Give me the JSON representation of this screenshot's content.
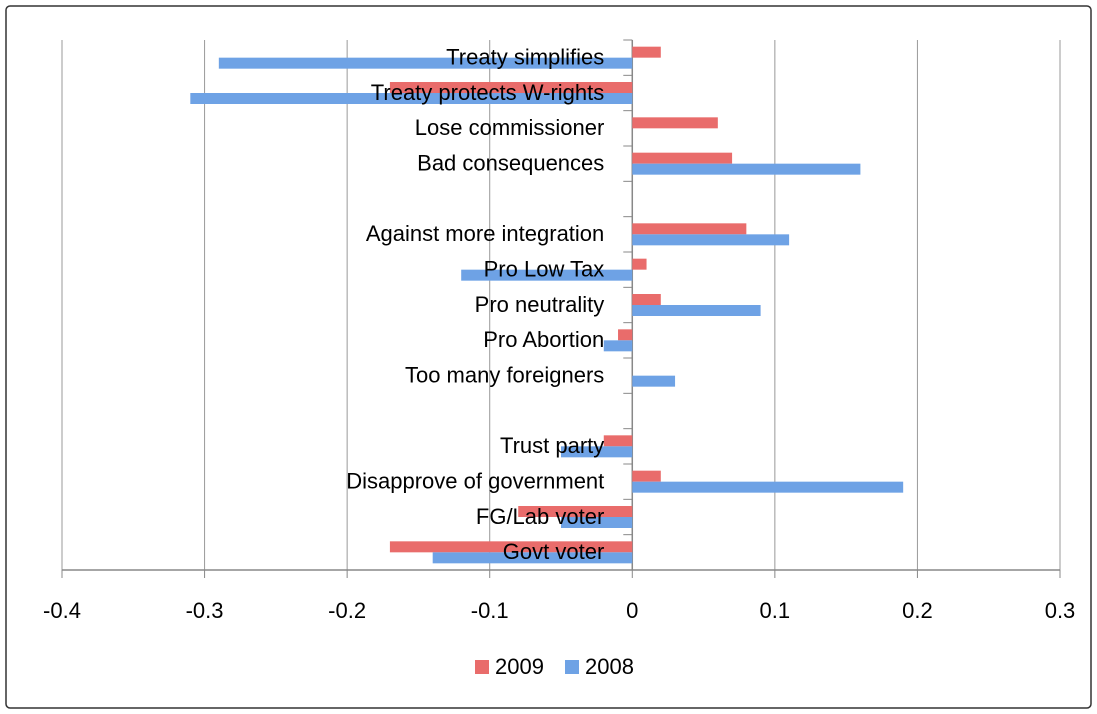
{
  "chart_data": {
    "type": "bar",
    "orientation": "horizontal",
    "categories": [
      "Treaty simplifies",
      "Treaty protects W-rights",
      "Lose commissioner",
      "Bad consequences",
      null,
      "Against more integration",
      "Pro Low Tax",
      "Pro neutrality",
      "Pro Abortion",
      "Too many foreigners",
      null,
      "Trust party",
      "Disapprove of government",
      "FG/Lab voter",
      "Govt voter"
    ],
    "series": [
      {
        "name": "2009",
        "color": "#e96c6b",
        "values": [
          0.02,
          -0.17,
          0.06,
          0.07,
          null,
          0.08,
          0.01,
          0.02,
          -0.01,
          0,
          null,
          -0.02,
          0.02,
          -0.08,
          -0.17
        ]
      },
      {
        "name": "2008",
        "color": "#6ea2e5",
        "values": [
          -0.29,
          -0.31,
          0,
          0.16,
          null,
          0.11,
          -0.12,
          0.09,
          -0.02,
          0.03,
          null,
          -0.05,
          0.19,
          -0.05,
          -0.14
        ]
      }
    ],
    "xlim": [
      -0.4,
      0.3
    ],
    "xticks": [
      -0.4,
      -0.3,
      -0.2,
      -0.1,
      0,
      0.1,
      0.2,
      0.3
    ],
    "grid": true,
    "legend": "bottom"
  }
}
